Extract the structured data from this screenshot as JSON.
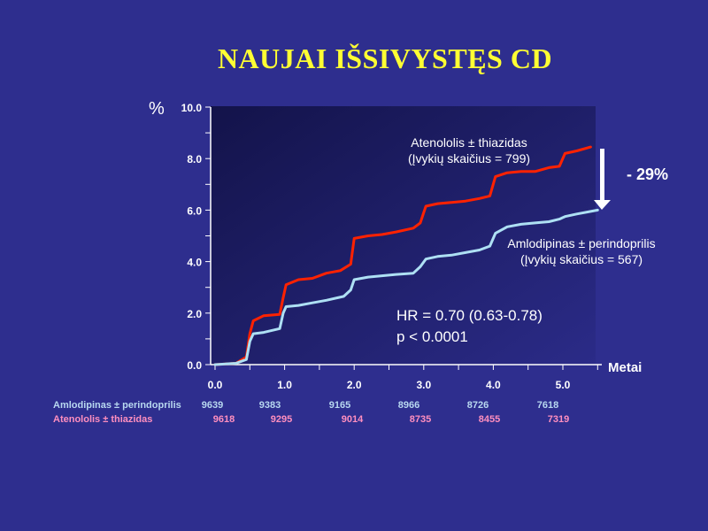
{
  "title": "NAUJAI IŠSIVYSTĘS CD",
  "reduction_label": "- 29%",
  "stats": {
    "hr": "HR = 0.70 (0.63-0.78)",
    "p": "p < 0.0001"
  },
  "risk_table": {
    "columns": [
      "0.0",
      "1.0",
      "2.0",
      "3.0",
      "4.0",
      "5.0"
    ],
    "rows": [
      {
        "name": "Amlodipinas ± perindoprilis",
        "values": [
          "9639",
          "9383",
          "9165",
          "8966",
          "8726",
          "7618"
        ],
        "color": "#b8d8f0"
      },
      {
        "name": "Atenololis ± thiazidas",
        "values": [
          "9618",
          "9295",
          "9014",
          "8735",
          "8455",
          "7319"
        ],
        "color": "#ff8fbf"
      }
    ]
  },
  "colors": {
    "background": "#2e2e8e",
    "plot_background_top": "#13134a",
    "plot_background_bottom": "#2b2b88",
    "title": "#ffff33",
    "atenolol_line": "#ff2200",
    "amlodipine_line": "#aee0f4",
    "arrow": "#ffffff"
  },
  "chart_data": {
    "type": "line",
    "title": "NAUJAI IŠSIVYSTĘS CD",
    "xlabel": "Metai",
    "ylabel": "%",
    "xlim": [
      0,
      5.5
    ],
    "ylim": [
      0,
      10
    ],
    "x_ticks": [
      "0.0",
      "1.0",
      "2.0",
      "3.0",
      "4.0",
      "5.0"
    ],
    "y_ticks": [
      "0.0",
      "2.0",
      "4.0",
      "6.0",
      "8.0",
      "10.0"
    ],
    "grid": false,
    "series": [
      {
        "name": "Atenololis ± thiazidas",
        "label_lines": [
          "Atenololis ± thiazidas",
          "(Įvykių skaičius = 799)"
        ],
        "color": "#ff2200",
        "points": [
          [
            0,
            0
          ],
          [
            0.3,
            0.05
          ],
          [
            0.45,
            0.3
          ],
          [
            0.5,
            1.2
          ],
          [
            0.55,
            1.7
          ],
          [
            0.7,
            1.9
          ],
          [
            0.93,
            1.95
          ],
          [
            0.98,
            2.6
          ],
          [
            1.02,
            3.1
          ],
          [
            1.2,
            3.3
          ],
          [
            1.4,
            3.35
          ],
          [
            1.6,
            3.55
          ],
          [
            1.8,
            3.65
          ],
          [
            1.95,
            3.9
          ],
          [
            2.0,
            4.9
          ],
          [
            2.2,
            5.0
          ],
          [
            2.4,
            5.05
          ],
          [
            2.6,
            5.15
          ],
          [
            2.85,
            5.3
          ],
          [
            2.95,
            5.5
          ],
          [
            3.03,
            6.15
          ],
          [
            3.2,
            6.25
          ],
          [
            3.4,
            6.3
          ],
          [
            3.6,
            6.35
          ],
          [
            3.8,
            6.45
          ],
          [
            3.95,
            6.55
          ],
          [
            4.03,
            7.3
          ],
          [
            4.2,
            7.45
          ],
          [
            4.4,
            7.5
          ],
          [
            4.6,
            7.5
          ],
          [
            4.8,
            7.65
          ],
          [
            4.95,
            7.7
          ],
          [
            5.03,
            8.2
          ],
          [
            5.2,
            8.3
          ],
          [
            5.4,
            8.45
          ]
        ]
      },
      {
        "name": "Amlodipinas ± perindoprilis",
        "label_lines": [
          "Amlodipinas ± perindoprilis",
          "(Įvykių skaičius = 567)"
        ],
        "color": "#aee0f4",
        "points": [
          [
            0,
            0
          ],
          [
            0.3,
            0.05
          ],
          [
            0.45,
            0.2
          ],
          [
            0.5,
            0.9
          ],
          [
            0.55,
            1.2
          ],
          [
            0.7,
            1.25
          ],
          [
            0.93,
            1.4
          ],
          [
            0.98,
            2.0
          ],
          [
            1.02,
            2.25
          ],
          [
            1.2,
            2.3
          ],
          [
            1.4,
            2.4
          ],
          [
            1.6,
            2.5
          ],
          [
            1.85,
            2.65
          ],
          [
            1.95,
            2.9
          ],
          [
            2.0,
            3.3
          ],
          [
            2.2,
            3.4
          ],
          [
            2.4,
            3.45
          ],
          [
            2.6,
            3.5
          ],
          [
            2.85,
            3.55
          ],
          [
            2.95,
            3.8
          ],
          [
            3.03,
            4.1
          ],
          [
            3.2,
            4.2
          ],
          [
            3.4,
            4.25
          ],
          [
            3.6,
            4.35
          ],
          [
            3.8,
            4.45
          ],
          [
            3.95,
            4.6
          ],
          [
            4.03,
            5.1
          ],
          [
            4.2,
            5.35
          ],
          [
            4.4,
            5.45
          ],
          [
            4.6,
            5.5
          ],
          [
            4.8,
            5.55
          ],
          [
            4.95,
            5.65
          ],
          [
            5.03,
            5.75
          ],
          [
            5.2,
            5.85
          ],
          [
            5.4,
            5.95
          ],
          [
            5.5,
            6.0
          ]
        ]
      }
    ]
  }
}
